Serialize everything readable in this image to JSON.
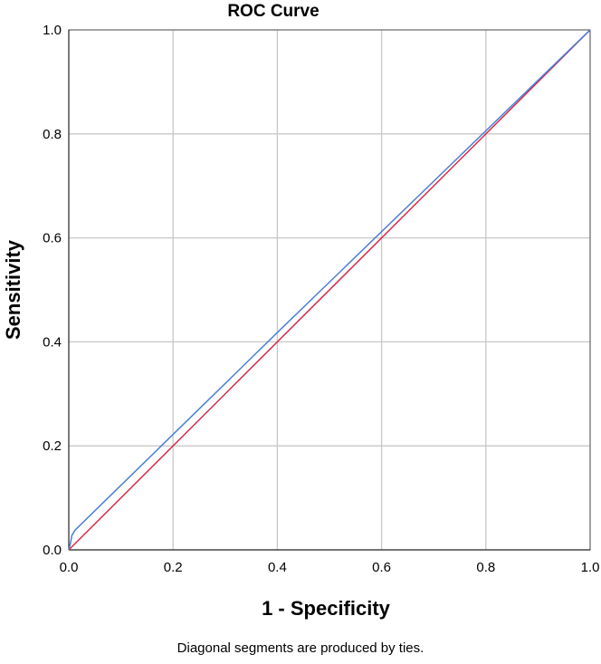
{
  "chart_data": {
    "type": "line",
    "title": "ROC Curve",
    "xlabel": "1 - Specificity",
    "ylabel": "Sensitivity",
    "xlim": [
      0,
      1
    ],
    "ylim": [
      0,
      1
    ],
    "xticks": [
      "0.0",
      "0.2",
      "0.4",
      "0.6",
      "0.8",
      "1.0"
    ],
    "yticks": [
      "0.0",
      "0.2",
      "0.4",
      "0.6",
      "0.8",
      "1.0"
    ],
    "grid": true,
    "footnote": "Diagonal segments are produced by ties.",
    "series": [
      {
        "color": "#4a7fd4",
        "points": [
          [
            0.0,
            0.0
          ],
          [
            0.003,
            0.012
          ],
          [
            0.006,
            0.028
          ],
          [
            0.012,
            0.038
          ],
          [
            0.2,
            0.222
          ],
          [
            0.4,
            0.418
          ],
          [
            0.6,
            0.612
          ],
          [
            0.8,
            0.806
          ],
          [
            1.0,
            1.0
          ]
        ]
      },
      {
        "color": "#d62a4a",
        "points": [
          [
            0.0,
            0.0
          ],
          [
            1.0,
            1.0
          ]
        ]
      }
    ]
  }
}
